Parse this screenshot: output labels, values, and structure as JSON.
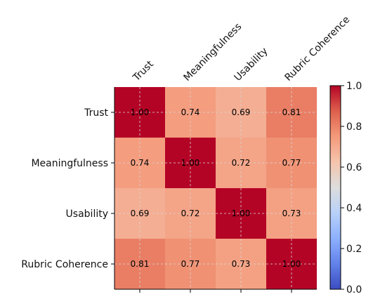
{
  "chart_data": {
    "type": "heatmap",
    "title": "",
    "xlabel": "",
    "ylabel": "",
    "x_categories": [
      "Trust",
      "Meaningfulness",
      "Usability",
      "Rubric Coherence"
    ],
    "y_categories": [
      "Trust",
      "Meaningfulness",
      "Usability",
      "Rubric Coherence"
    ],
    "values": [
      [
        1.0,
        0.74,
        0.69,
        0.81
      ],
      [
        0.74,
        1.0,
        0.72,
        0.77
      ],
      [
        0.69,
        0.72,
        1.0,
        0.73
      ],
      [
        0.81,
        0.77,
        0.73,
        1.0
      ]
    ],
    "value_labels": [
      [
        "1.00",
        "0.74",
        "0.69",
        "0.81"
      ],
      [
        "0.74",
        "1.00",
        "0.72",
        "0.77"
      ],
      [
        "0.69",
        "0.72",
        "1.00",
        "0.73"
      ],
      [
        "0.81",
        "0.77",
        "0.73",
        "1.00"
      ]
    ],
    "colormap": "coolwarm",
    "color_range": [
      0.0,
      1.0
    ],
    "colorbar": {
      "placement": "right",
      "ticks": [
        1.0,
        0.8,
        0.6,
        0.4,
        0.2,
        0.0
      ],
      "tick_labels": [
        "1.0",
        "0.8",
        "0.6",
        "0.4",
        "0.2",
        "0.0"
      ]
    },
    "grid": true,
    "x_tick_position": "top",
    "x_tick_rotation": 45
  }
}
